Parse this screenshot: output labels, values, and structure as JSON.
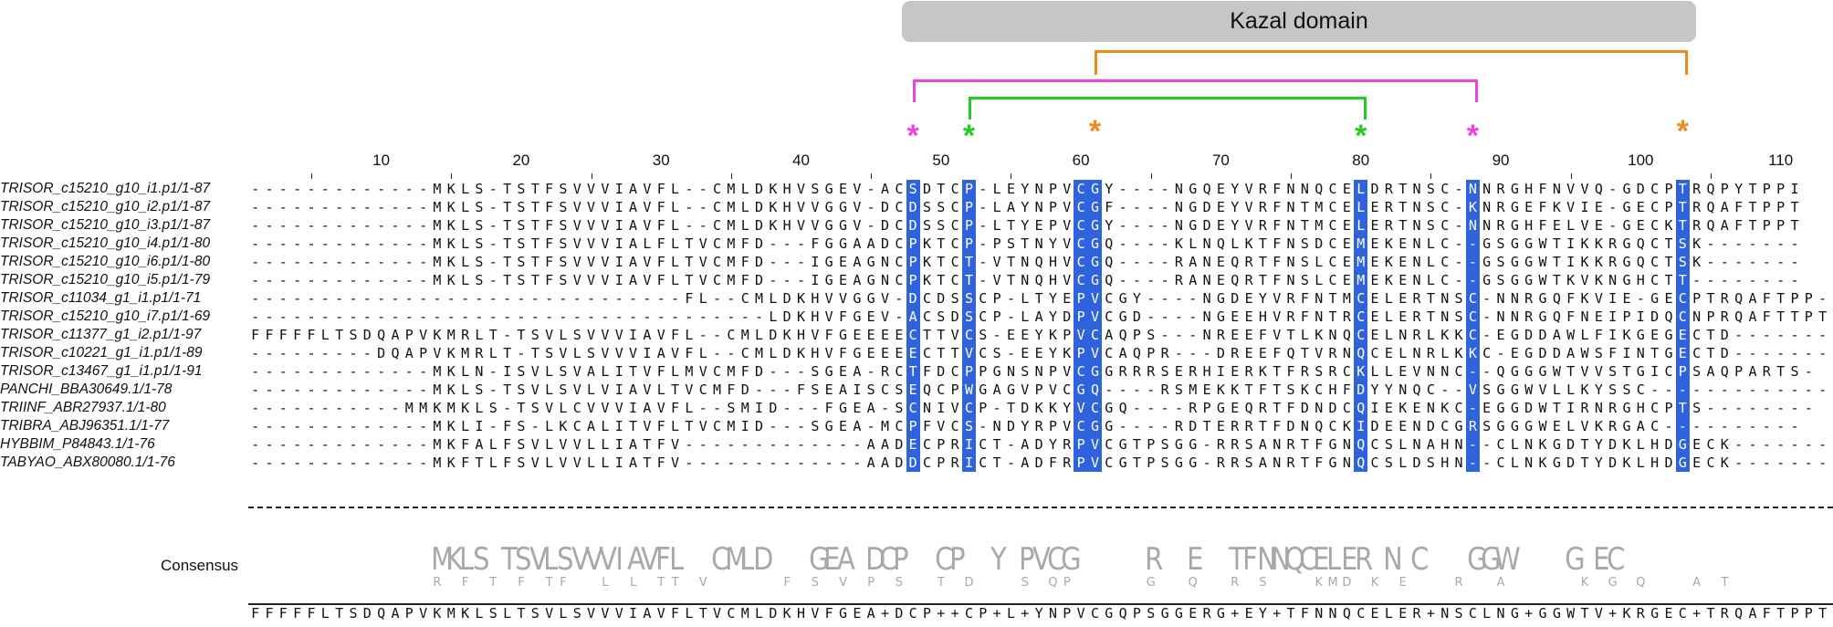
{
  "domain_label": "Kazal domain",
  "colors": {
    "highlight": "#2f62dd",
    "pink": "#ee44dd",
    "green": "#22cc22",
    "orange": "#f08a1a",
    "domain_bar": "#c6c6c6",
    "logo_gray": "#a8a8a8",
    "logo_blue": "#2f62dd"
  },
  "bonds": [
    {
      "name": "pink",
      "from": 48,
      "to": 88
    },
    {
      "name": "green",
      "from": 52,
      "to": 80
    },
    {
      "name": "orange",
      "from": 61,
      "to": 103
    }
  ],
  "stars": [
    {
      "pos": 48,
      "color": "pink"
    },
    {
      "pos": 52,
      "color": "green"
    },
    {
      "pos": 61,
      "color": "orange"
    },
    {
      "pos": 80,
      "color": "green"
    },
    {
      "pos": 88,
      "color": "pink"
    },
    {
      "pos": 103,
      "color": "orange"
    }
  ],
  "ruler": {
    "labels": [
      "10",
      "20",
      "30",
      "40",
      "50",
      "60",
      "70",
      "80",
      "90",
      "100",
      "110"
    ],
    "label_positions": [
      10,
      20,
      30,
      40,
      50,
      60,
      70,
      80,
      90,
      100,
      110
    ],
    "tick_positions": [
      5,
      15,
      25,
      35,
      45,
      55,
      65,
      75,
      85,
      95,
      105
    ]
  },
  "highlight_columns": [
    48,
    52,
    60,
    61,
    80,
    88,
    103
  ],
  "sequences": [
    {
      "name": "TRISOR_c15210_g10_i1.p1/1-87",
      "seq": "-------------MKLS-TSTFSVVVIAVFL--CMLDKHVSGEV-ACSDTCP-LEYNPVCGY----NGQEYVRFNNQCELDRTNSC-NNRGHFNVVQ-GDCPTRQPYTPPI"
    },
    {
      "name": "TRISOR_c15210_g10_i2.p1/1-87",
      "seq": "-------------MKLS-TSTFSVVVIAVFL--CMLDKHVVGGV-DCDSSCP-LAYNPVCGF----NGDEYVRFNTMCELERTNSC-KNRGEFKVIE-GECPTRQAFTPPT"
    },
    {
      "name": "TRISOR_c15210_g10_i3.p1/1-87",
      "seq": "-------------MKLS-TSTFSVVVIAVFL--CMLDKHVVGGV-DCDSSCP-LTYEPVCGY----NGDEYVRFNTMCELERTNSC-NNRGHFELVE-GECKTRQAFTPPT"
    },
    {
      "name": "TRISOR_c15210_g10_i4.p1/1-80",
      "seq": "-------------MKLS-TSTFSVVVIALFLTVCMFD---FGGAADCPKTCP-PSTNYVCGQ----KLNQLKTFNSDCEMEKENLC--GSGGWTIKKRGQCTSK-------"
    },
    {
      "name": "TRISOR_c15210_g10_i6.p1/1-80",
      "seq": "-------------MKLS-TSTFSVVVIAVFLTVCMFD---IGEAGNCPKTCT-VTNQHVCGQ----RANEQRTFNSLCEMEKENLC--GSGGWTIKKRGQCTSK-------"
    },
    {
      "name": "TRISOR_c15210_g10_i5.p1/1-79",
      "seq": "-------------MKLS-TSTFSVVVIAVFLTVCMFD---IGEAGNCPKTCT-VTNQHVCGQ----RANEQRTFNSLCEMEKENLC--GSGGWTKVKNGHCTT--------"
    },
    {
      "name": "TRISOR_c11034_g1_i1.p1/1-71",
      "seq": "-------------------------------FL--CMLDKHVVGGV-DCDSSCP-LTYEPVCGY----NGDEYVRFNTMCELERTNSC-NNRGQFKVIE-GECPTRQAFTPP-"
    },
    {
      "name": "TRISOR_c15210_g10_i7.p1/1-69",
      "seq": "-------------------------------------LDKHVFGEV-ACSDSCP-LAYDPVCGD----NGEEHVRFNTRCELERTNSC-NNRGQFNEIPIDQCNPRQAFTTPT"
    },
    {
      "name": "TRISOR_c11377_g1_i2.p1/1-97",
      "seq": "FFFFFLTSDQAPVKMRLT-TSVLSVVVIAVFL--CMLDKHVFGEEEECTTVCS-EEYKPVCAQPS---NREEFVTLKNQCELNRLKKC-EGDDAWLFIKGEGECTD-------"
    },
    {
      "name": "TRISOR_c10221_g1_i1.p1/1-89",
      "seq": "---------DQAPVKMRLT-TSVLSVVVIAVFL--CMLDKHVFGEEEECTTVCS-EEYKPVCAQPR---DREEFQTVRNQCELNRLKKC-EGDDAWSFINTGECTD-------"
    },
    {
      "name": "TRISOR_c13467_g1_i1.p1/1-91",
      "seq": "-------------MKLN-ISVLSVALITVFLMVCMFD---SGEA-RCTFDCPPGNSNPVCGGRRRSERHIERKTFRSRCKLLEVNNC--QGGGWTVVSTGICPSAQPARTS-"
    },
    {
      "name": "PANCHI_BBA30649.1/1-78",
      "seq": "-------------MKLS-TSVLSVLVIAVLTVCMFD---FSEAISCSEQCPWGAGVPVCGQ----RSMEKKTFTSKCHFDYYNQC--VSGGWVLLKYSSC-------------"
    },
    {
      "name": "TRIINF_ABR27937.1/1-80",
      "seq": "-----------MMKMKLS-TSVLCVVVIAVFL--SMID---FGEA-SCNIVCP-TDKKYVCGQ----RPGEQRTFDNDCQIEKENKC-EGGDWTIRNRGHCPTS--------"
    },
    {
      "name": "TRIBRA_ABJ96351.1/1-77",
      "seq": "-------------MKLI-FS-LKCALITVFLTVCMID---SGEA-MCPFVCS-NDYRPVCGG----RDTERRTFDNQCKIDEENDCGRSGGGWELVKRGAC----------"
    },
    {
      "name": "HYBBIM_P84843.1/1-76",
      "seq": "-------------MKFALFSVLVVLLIATFV-------------AADECPRICT-ADYRPVCGTPSGG-RRSANRTFGNQCSLNAHN--CLNKGDTYDKLHDGECK---------"
    },
    {
      "name": "TABYAO_ABX80080.1/1-76",
      "seq": "-------------MKFTLFSVLVVLLIATFV-------------AADDCPRICT-ADFRPVCGTPSGG-RRSANRTFGNQCSLDSHN--CLNKGDTYDKLHDGECK---------"
    }
  ],
  "consensus_label": "Consensus",
  "consensus_seq": "FFFFFLTSDQAPVKMKLSLTSVLSVVVIAVFLTVCMLDKHVFGEA+DCP++CP+L+YNPVCGQPSGGERG+EY+TFNNQCELER+NSCLNG+GGWTV+KRGEC+TRQAFTPPT",
  "logo_top": "-------------MKLS-TSVLSVVVIAVFL--CMLD---GEA-DCP--CP--Y-PVCG-----R--E--TFNNQCELER-N-C---GGW----G-EC----------",
  "logo_second": "-------------R-F-T-F-TF--L-L-TT-V-----F-S-V-P-S--T-D---S-QP-----G--Q--R-S---KMD-K-E---R--A-----K-G-Q---A-T----"
}
